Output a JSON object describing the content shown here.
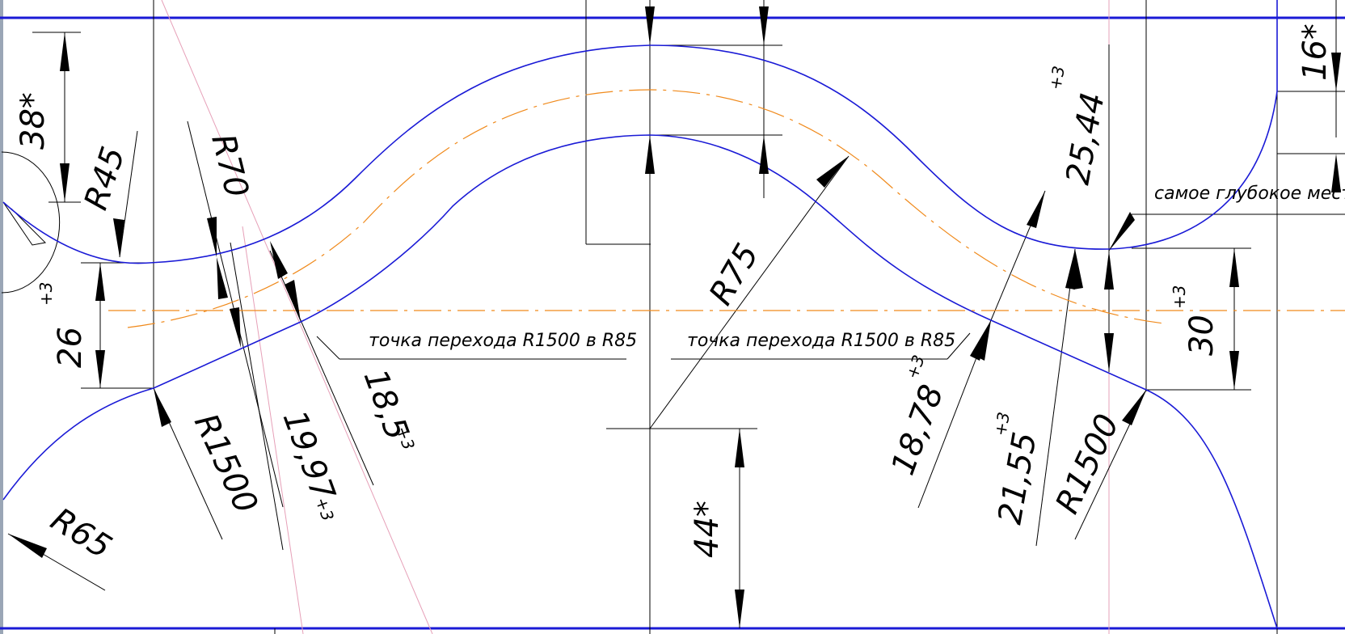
{
  "drawing": {
    "colors": {
      "profile": "#1a1ad6",
      "axis": "#f08a1c",
      "dimension": "#000000",
      "construction": "#e6a0b8",
      "frame": "#1a1ad6",
      "background": "#ffffff"
    },
    "dimensions": {
      "d38": "38*",
      "r45": "R45",
      "r70": "R70",
      "d26": "26",
      "d26_tol": "+3",
      "r1500_left": "R1500",
      "d1997": "19,97",
      "d1997_tol": "+3",
      "d185": "18,5",
      "d185_tol": "+3",
      "r65": "R65",
      "r75": "R75",
      "d44": "44*",
      "d1878": "18,78",
      "d1878_tol": "+3",
      "d2155": "21,55",
      "d2155_tol": "+3",
      "r1500_right": "R1500",
      "d2544": "25,44",
      "d2544_tol": "+3",
      "d30": "30",
      "d30_tol": "+3",
      "d16": "16*"
    },
    "notes": {
      "transition_left": "точка перехода R1500 в R85",
      "transition_right": "точка перехода R1500 в R85",
      "deepest": "самое глубокое место"
    }
  }
}
